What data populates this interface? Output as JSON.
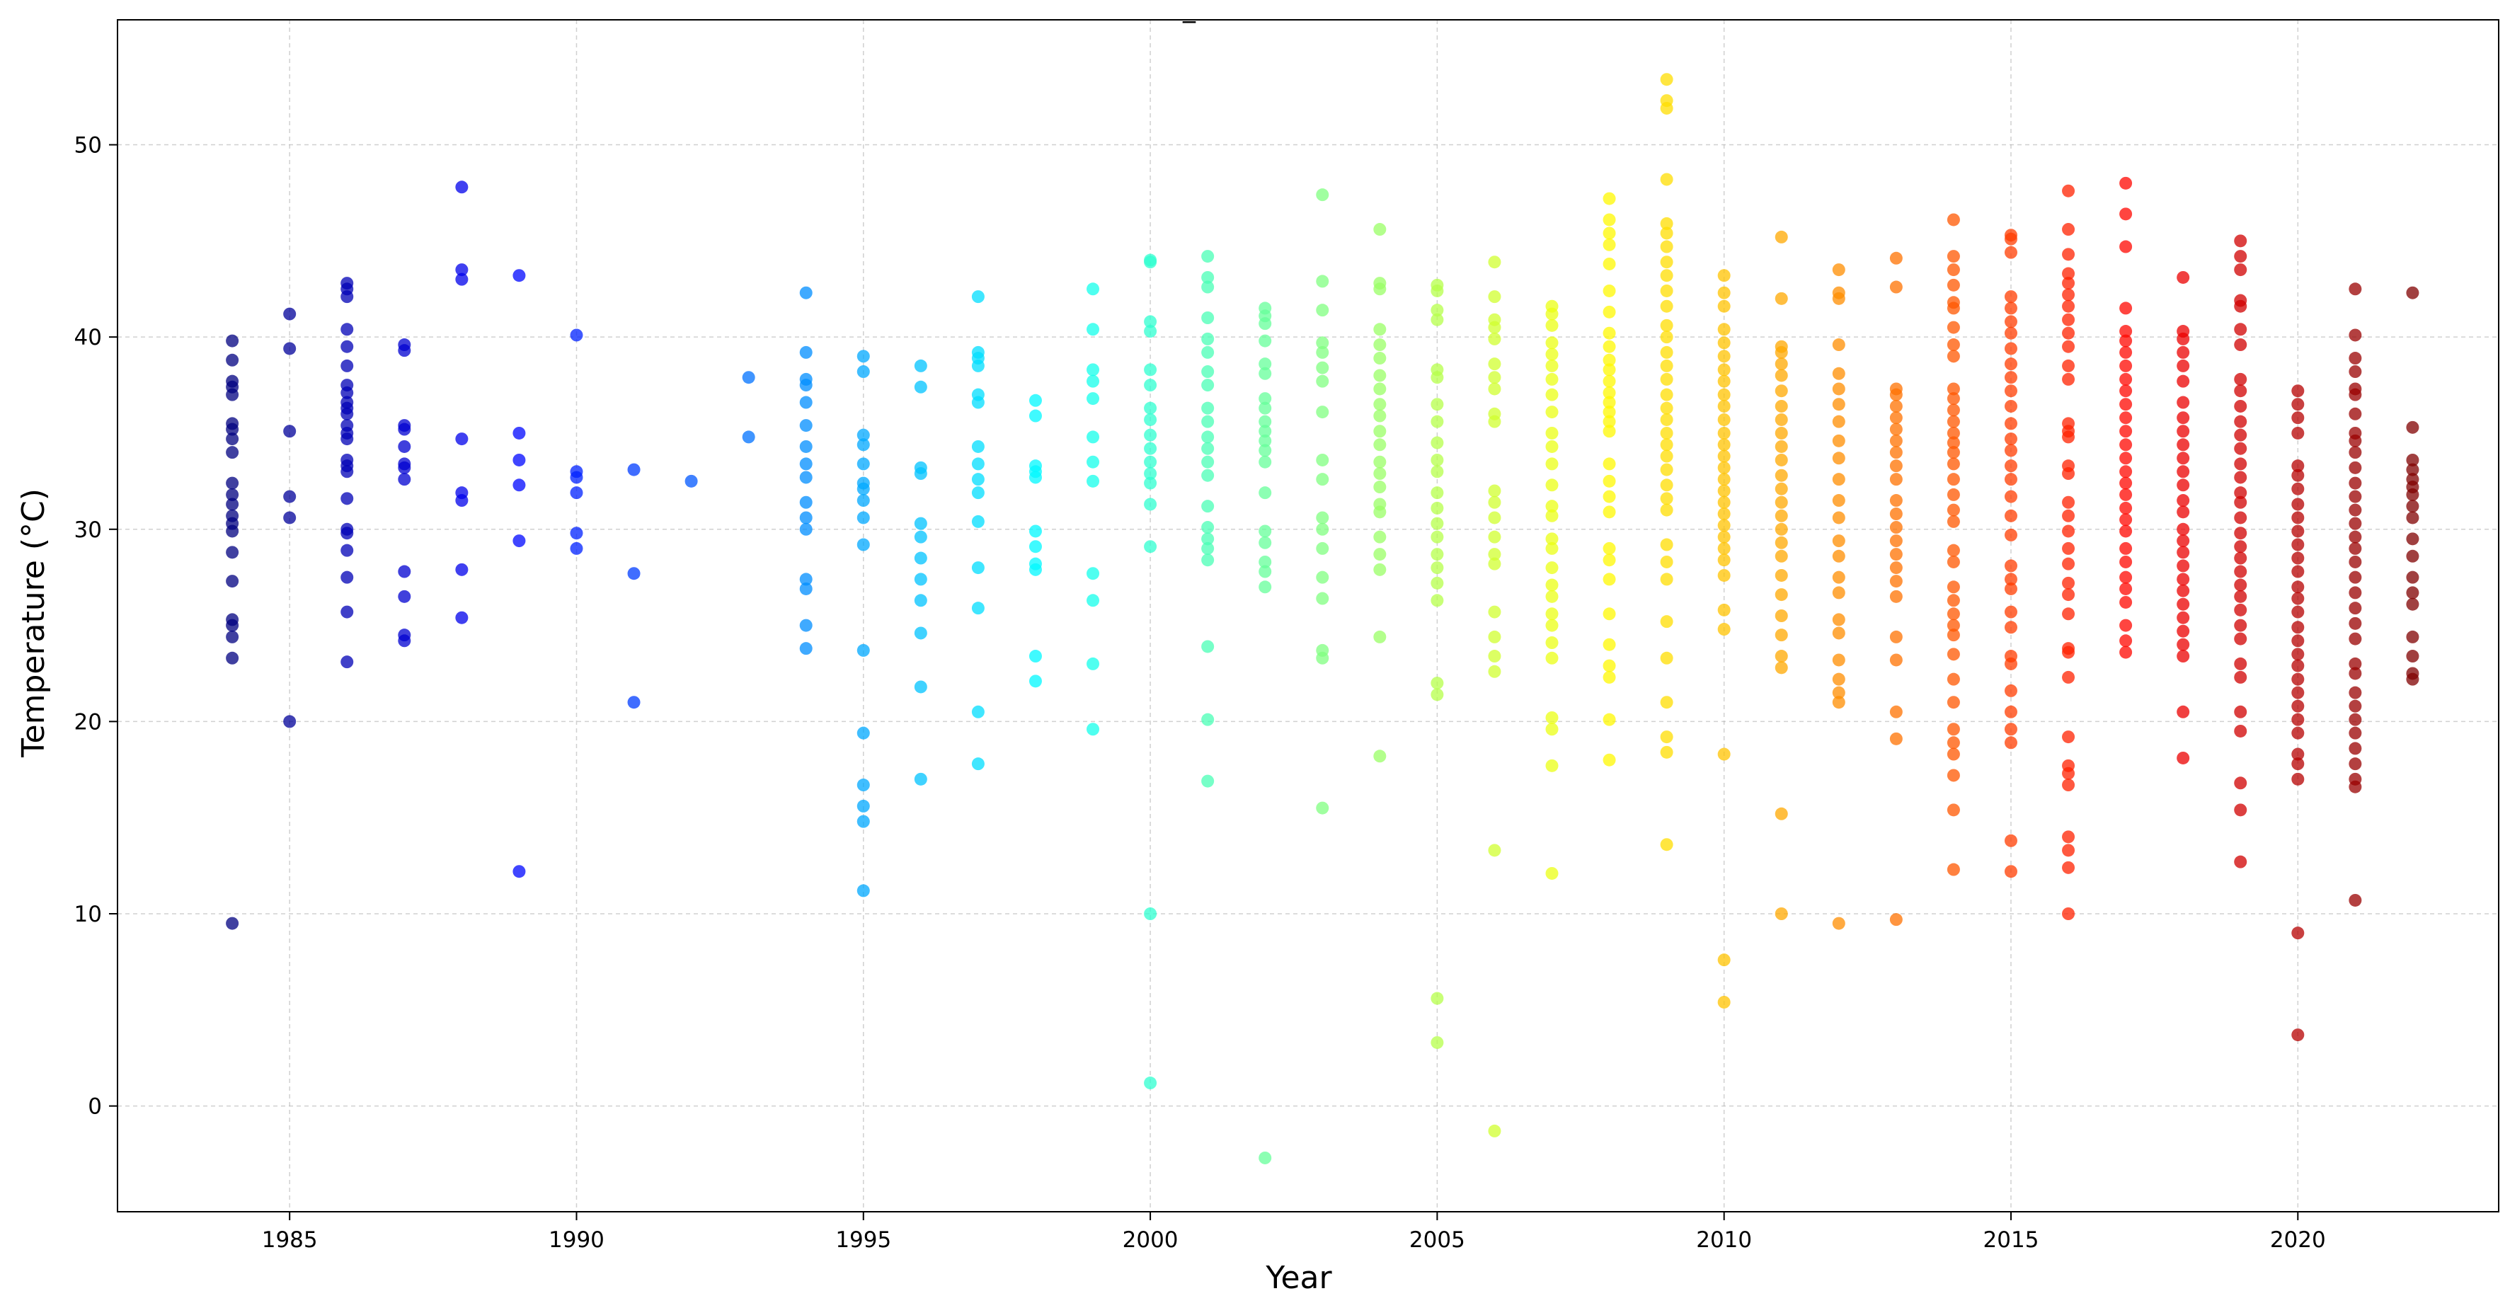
{
  "chart_data": {
    "type": "scatter",
    "title": "_",
    "xlabel": "Year",
    "ylabel": "Temperature (°C)",
    "xlim": [
      1982,
      2023.5
    ],
    "ylim": [
      -5.5,
      56.5
    ],
    "xticks": [
      "1985",
      "1990",
      "1995",
      "2000",
      "2005",
      "2010",
      "2015",
      "2020"
    ],
    "yticks": [
      "0",
      "10",
      "20",
      "30",
      "40",
      "50"
    ],
    "grid": true,
    "legend": "none",
    "colormap": "jet",
    "marker_alpha": 0.75,
    "points": [
      {
        "year": 1984,
        "temps": [
          9.5,
          23.3,
          24.4,
          25.0,
          25.3,
          27.3,
          28.8,
          29.9,
          30.3,
          30.7,
          31.3,
          31.8,
          32.4,
          34.0,
          34.7,
          35.2,
          35.5,
          37.0,
          37.4,
          37.7,
          38.8,
          39.8
        ]
      },
      {
        "year": 1985,
        "temps": [
          20.0,
          30.6,
          31.7,
          35.1,
          39.4,
          41.2
        ]
      },
      {
        "year": 1986,
        "temps": [
          23.1,
          25.7,
          27.5,
          28.9,
          29.8,
          30.0,
          31.6,
          33.0,
          33.3,
          33.6,
          34.7,
          35.0,
          35.4,
          36.0,
          36.3,
          36.6,
          37.1,
          37.5,
          38.5,
          39.5,
          40.4,
          42.1,
          42.5,
          42.8
        ]
      },
      {
        "year": 1987,
        "temps": [
          24.2,
          24.5,
          26.5,
          27.8,
          32.6,
          33.2,
          33.4,
          34.3,
          35.2,
          35.4,
          39.3,
          39.6
        ]
      },
      {
        "year": 1988,
        "temps": [
          25.4,
          27.9,
          31.5,
          31.9,
          34.7,
          43.0,
          43.5,
          47.8
        ]
      },
      {
        "year": 1989,
        "temps": [
          12.2,
          29.4,
          32.3,
          33.6,
          35.0,
          43.2
        ]
      },
      {
        "year": 1990,
        "temps": [
          29.0,
          29.8,
          31.9,
          32.7,
          33.0,
          40.1
        ]
      },
      {
        "year": 1991,
        "temps": [
          21.0,
          27.7,
          33.1
        ]
      },
      {
        "year": 1992,
        "temps": [
          32.5
        ]
      },
      {
        "year": 1993,
        "temps": [
          34.8,
          37.9
        ]
      },
      {
        "year": 1994,
        "temps": [
          23.8,
          25.0,
          26.9,
          27.4,
          30.0,
          30.6,
          31.4,
          32.7,
          33.4,
          34.3,
          35.4,
          36.6,
          37.5,
          37.8,
          39.2,
          42.3
        ]
      },
      {
        "year": 1995,
        "temps": [
          11.2,
          14.8,
          15.6,
          16.7,
          19.4,
          23.7,
          29.2,
          30.6,
          31.5,
          32.1,
          32.4,
          33.4,
          34.4,
          34.9,
          38.2,
          39.0
        ]
      },
      {
        "year": 1996,
        "temps": [
          17.0,
          21.8,
          24.6,
          26.3,
          27.4,
          28.5,
          29.6,
          30.3,
          32.9,
          33.2,
          37.4,
          38.5
        ]
      },
      {
        "year": 1997,
        "temps": [
          17.8,
          20.5,
          25.9,
          28.0,
          30.4,
          31.9,
          32.6,
          33.4,
          34.3,
          36.6,
          37.0,
          38.5,
          38.9,
          39.2,
          42.1
        ]
      },
      {
        "year": 1998,
        "temps": [
          22.1,
          23.4,
          27.9,
          28.2,
          29.1,
          29.9,
          32.7,
          33.0,
          33.3,
          35.9,
          36.7
        ]
      },
      {
        "year": 1999,
        "temps": [
          19.6,
          23.0,
          26.3,
          27.7,
          32.5,
          33.5,
          34.8,
          36.8,
          37.7,
          38.3,
          40.4,
          42.5
        ]
      },
      {
        "year": 2000,
        "temps": [
          1.2,
          10.0,
          29.1,
          31.3,
          32.4,
          32.9,
          33.5,
          34.2,
          34.9,
          35.7,
          36.3,
          37.5,
          38.3,
          40.3,
          40.8,
          43.9,
          44.0
        ]
      },
      {
        "year": 2001,
        "temps": [
          16.9,
          20.1,
          23.9,
          28.4,
          29.0,
          29.5,
          30.1,
          31.2,
          32.8,
          33.5,
          34.2,
          34.8,
          35.6,
          36.3,
          37.5,
          38.2,
          39.2,
          39.9,
          41.0,
          42.6,
          43.1,
          44.2
        ]
      },
      {
        "year": 2002,
        "temps": [
          -2.7,
          27.0,
          27.8,
          28.3,
          29.3,
          29.9,
          31.9,
          33.5,
          34.1,
          34.6,
          35.1,
          35.6,
          36.3,
          36.8,
          38.1,
          38.6,
          39.8,
          40.7,
          41.1,
          41.5
        ]
      },
      {
        "year": 2003,
        "temps": [
          15.5,
          23.3,
          23.7,
          26.4,
          27.5,
          29.0,
          30.0,
          30.6,
          32.6,
          33.6,
          36.1,
          37.7,
          38.4,
          39.2,
          39.7,
          41.4,
          42.9,
          47.4
        ]
      },
      {
        "year": 2004,
        "temps": [
          18.2,
          24.4,
          27.9,
          28.7,
          29.6,
          30.9,
          31.3,
          32.2,
          32.9,
          33.5,
          34.4,
          35.1,
          35.9,
          36.5,
          37.3,
          38.0,
          38.9,
          39.6,
          40.4,
          42.5,
          42.8,
          45.6
        ]
      },
      {
        "year": 2005,
        "temps": [
          3.3,
          5.6,
          21.4,
          22.0,
          26.3,
          27.2,
          28.0,
          28.7,
          29.6,
          30.3,
          31.1,
          31.9,
          33.0,
          33.6,
          34.5,
          35.6,
          36.5,
          37.9,
          38.3,
          40.9,
          41.4,
          42.4,
          42.7
        ]
      },
      {
        "year": 2006,
        "temps": [
          -1.3,
          13.3,
          22.6,
          23.4,
          24.4,
          25.7,
          28.2,
          28.7,
          29.6,
          30.6,
          31.4,
          32.0,
          35.6,
          36.0,
          37.3,
          37.9,
          38.6,
          39.9,
          40.5,
          40.9,
          42.1,
          43.9
        ]
      },
      {
        "year": 2007,
        "temps": [
          12.1,
          17.7,
          19.6,
          20.2,
          23.3,
          24.1,
          25.0,
          25.6,
          26.5,
          27.1,
          28.0,
          29.0,
          29.5,
          30.7,
          31.2,
          32.3,
          33.4,
          34.3,
          35.0,
          36.1,
          37.0,
          37.8,
          38.5,
          39.1,
          39.7,
          40.6,
          41.2,
          41.6
        ]
      },
      {
        "year": 2008,
        "temps": [
          18.0,
          20.1,
          22.3,
          22.9,
          24.0,
          25.6,
          27.4,
          28.4,
          29.0,
          30.9,
          31.7,
          32.5,
          33.4,
          35.1,
          35.6,
          36.1,
          36.6,
          37.1,
          37.7,
          38.3,
          38.8,
          39.5,
          40.2,
          41.3,
          42.4,
          43.8,
          44.8,
          45.4,
          46.1,
          47.2
        ]
      },
      {
        "year": 2009,
        "temps": [
          13.6,
          18.4,
          19.2,
          21.0,
          23.3,
          25.2,
          27.4,
          28.3,
          29.2,
          31.0,
          31.6,
          32.3,
          33.1,
          33.8,
          34.4,
          35.0,
          35.7,
          36.3,
          37.0,
          37.8,
          38.5,
          39.2,
          40.0,
          40.6,
          41.6,
          42.4,
          43.2,
          43.9,
          44.7,
          45.4,
          45.9,
          48.2,
          51.9,
          52.3,
          53.4
        ]
      },
      {
        "year": 2010,
        "temps": [
          5.4,
          7.6,
          18.3,
          24.8,
          25.8,
          27.6,
          28.4,
          29.0,
          29.6,
          30.2,
          30.8,
          31.4,
          32.0,
          32.6,
          33.2,
          33.8,
          34.4,
          35.0,
          35.7,
          36.4,
          37.0,
          37.7,
          38.3,
          39.0,
          39.7,
          40.4,
          41.6,
          42.3,
          43.2
        ]
      },
      {
        "year": 2011,
        "temps": [
          10.0,
          15.2,
          22.8,
          23.4,
          24.5,
          25.5,
          26.6,
          27.6,
          28.6,
          29.3,
          30.0,
          30.7,
          31.4,
          32.1,
          32.8,
          33.6,
          34.3,
          35.0,
          35.7,
          36.4,
          37.2,
          38.0,
          38.6,
          39.2,
          39.5,
          42.0,
          45.2
        ]
      },
      {
        "year": 2012,
        "temps": [
          9.5,
          21.0,
          21.5,
          22.2,
          23.2,
          24.6,
          25.3,
          26.7,
          27.5,
          28.6,
          29.4,
          30.6,
          31.5,
          32.6,
          33.7,
          34.6,
          35.6,
          36.5,
          37.3,
          38.1,
          39.6,
          42.0,
          42.3,
          43.5
        ]
      },
      {
        "year": 2013,
        "temps": [
          9.7,
          19.1,
          20.5,
          23.2,
          24.4,
          26.5,
          27.3,
          28.0,
          28.7,
          29.4,
          30.1,
          30.8,
          31.5,
          32.6,
          33.3,
          34.0,
          34.6,
          35.2,
          35.8,
          36.4,
          37.0,
          37.3,
          42.6,
          44.1
        ]
      },
      {
        "year": 2014,
        "temps": [
          12.3,
          15.4,
          17.2,
          18.3,
          18.9,
          19.6,
          21.0,
          22.2,
          23.5,
          24.5,
          25.0,
          25.6,
          26.3,
          27.0,
          28.3,
          28.9,
          30.4,
          31.0,
          31.8,
          32.6,
          33.4,
          34.0,
          34.5,
          35.0,
          35.6,
          36.2,
          36.8,
          37.3,
          39.0,
          39.6,
          40.5,
          41.5,
          41.8,
          42.7,
          43.5,
          44.2,
          46.1
        ]
      },
      {
        "year": 2015,
        "temps": [
          12.2,
          13.8,
          18.9,
          19.6,
          20.5,
          21.6,
          23.0,
          23.4,
          24.9,
          25.7,
          26.9,
          27.4,
          28.1,
          29.7,
          30.7,
          31.7,
          32.6,
          33.3,
          34.1,
          34.7,
          35.5,
          36.4,
          37.2,
          37.9,
          38.6,
          39.4,
          40.2,
          40.8,
          41.5,
          42.1,
          44.4,
          45.1,
          45.3
        ]
      },
      {
        "year": 2016,
        "temps": [
          10.0,
          12.4,
          13.3,
          14.0,
          16.7,
          17.3,
          17.7,
          19.2,
          22.3,
          23.6,
          23.8,
          25.6,
          26.6,
          27.2,
          28.2,
          29.0,
          29.9,
          30.7,
          31.4,
          32.9,
          33.3,
          34.8,
          35.1,
          35.5,
          37.8,
          38.5,
          39.5,
          40.2,
          40.9,
          41.6,
          42.2,
          42.8,
          43.3,
          44.3,
          45.6,
          47.6
        ]
      },
      {
        "year": 2017,
        "temps": [
          23.6,
          24.2,
          25.0,
          26.2,
          26.9,
          27.5,
          28.3,
          29.0,
          29.9,
          30.5,
          31.1,
          31.8,
          32.4,
          33.0,
          33.7,
          34.4,
          35.1,
          35.8,
          36.5,
          37.2,
          37.8,
          38.5,
          39.2,
          39.8,
          40.3,
          41.5,
          44.7,
          46.4,
          48.0
        ]
      },
      {
        "year": 2018,
        "temps": [
          18.1,
          20.5,
          23.4,
          24.0,
          24.7,
          25.4,
          26.1,
          26.8,
          27.4,
          28.1,
          28.8,
          29.4,
          30.0,
          30.9,
          31.5,
          32.3,
          33.0,
          33.7,
          34.4,
          35.1,
          35.8,
          36.6,
          37.7,
          38.5,
          39.2,
          39.9,
          40.3,
          43.1
        ]
      },
      {
        "year": 2019,
        "temps": [
          12.7,
          15.4,
          16.8,
          19.5,
          20.5,
          22.3,
          23.0,
          24.3,
          25.0,
          25.8,
          26.5,
          27.1,
          27.8,
          28.5,
          29.1,
          29.8,
          30.6,
          31.4,
          31.9,
          32.7,
          33.4,
          34.2,
          34.9,
          35.6,
          36.4,
          37.2,
          37.8,
          39.6,
          40.4,
          41.6,
          41.9,
          43.5,
          44.2,
          45.0
        ]
      },
      {
        "year": 2020,
        "temps": [
          3.7,
          9.0,
          17.0,
          17.8,
          18.3,
          19.4,
          20.1,
          20.8,
          21.5,
          22.2,
          22.9,
          23.5,
          24.2,
          24.9,
          25.7,
          26.4,
          27.0,
          27.8,
          28.5,
          29.2,
          29.9,
          30.6,
          31.3,
          32.1,
          32.8,
          33.3,
          35.0,
          35.8,
          36.5,
          37.2
        ]
      },
      {
        "year": 2021,
        "temps": [
          10.7,
          16.6,
          17.0,
          17.8,
          18.6,
          19.4,
          20.1,
          20.8,
          21.5,
          22.5,
          23.0,
          24.3,
          25.1,
          25.9,
          26.7,
          27.5,
          28.3,
          29.0,
          29.6,
          30.3,
          31.0,
          31.7,
          32.4,
          33.2,
          34.0,
          34.6,
          35.0,
          36.0,
          37.0,
          37.3,
          38.2,
          38.9,
          40.1,
          42.5
        ]
      },
      {
        "year": 2022,
        "temps": [
          22.2,
          22.5,
          23.4,
          24.4,
          26.1,
          26.7,
          27.5,
          28.6,
          29.5,
          30.6,
          31.2,
          31.8,
          32.2,
          32.6,
          33.1,
          33.6,
          35.3,
          42.3
        ]
      }
    ]
  }
}
